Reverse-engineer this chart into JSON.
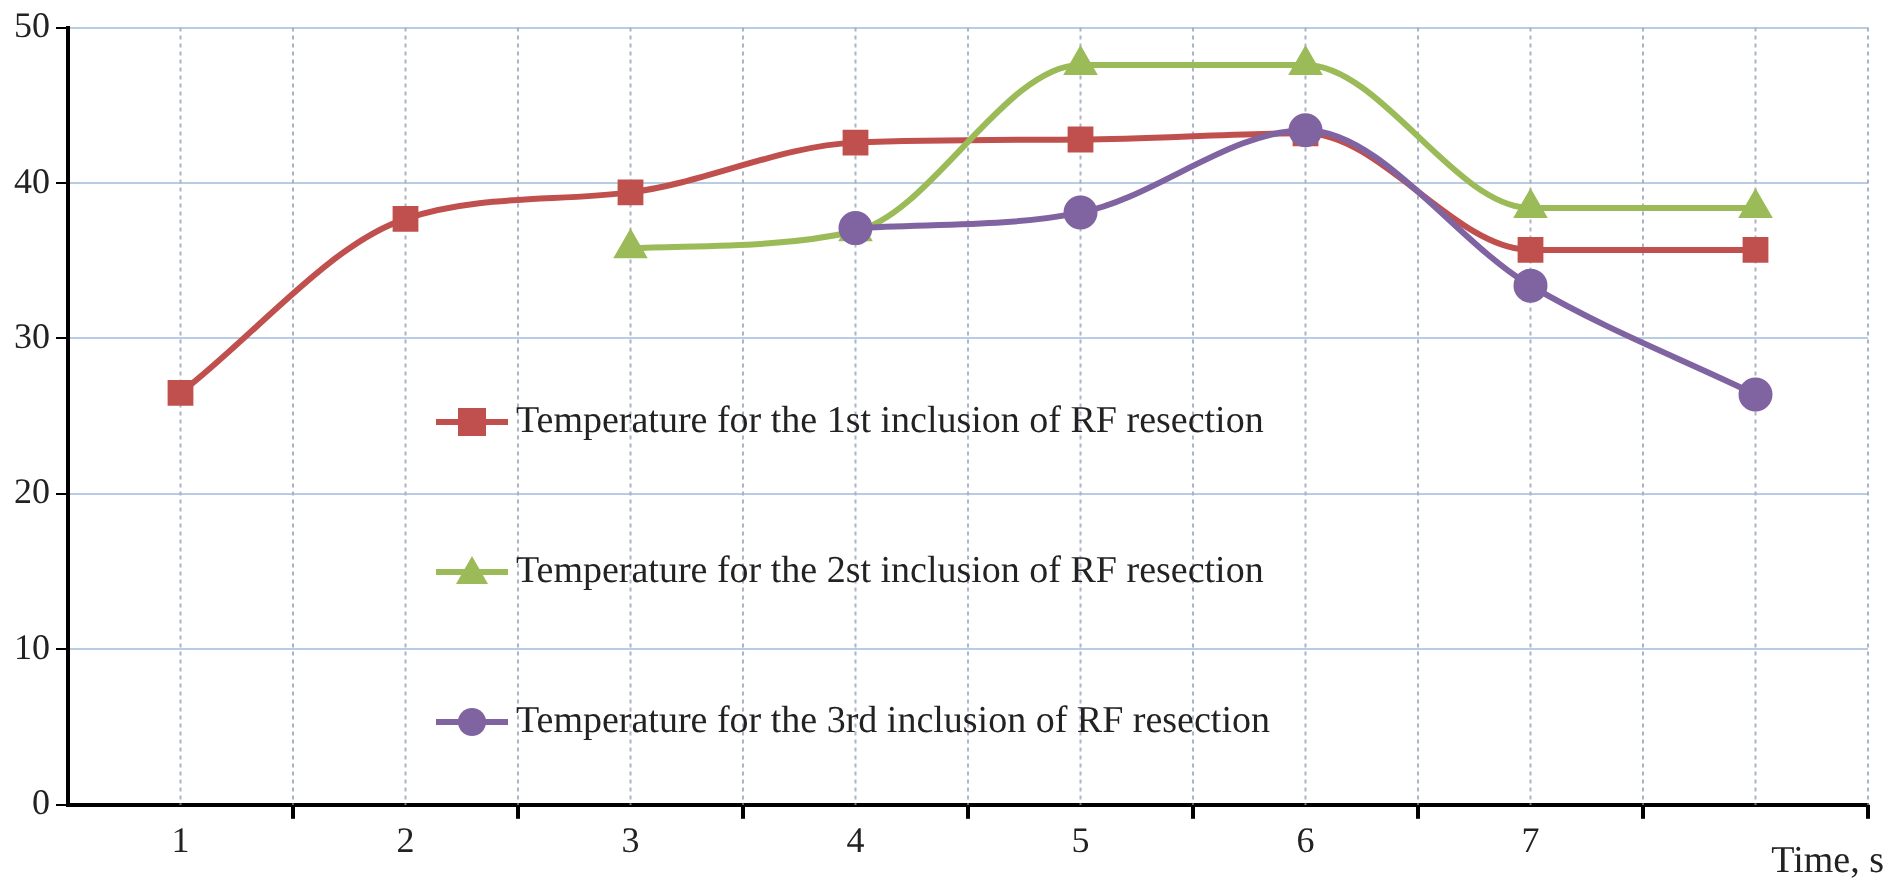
{
  "chart_data": {
    "type": "line",
    "xlabel": "Time, s",
    "categories": [
      "1",
      "2",
      "3",
      "4",
      "5",
      "6",
      "7",
      null
    ],
    "series": [
      {
        "name": "Temperature for the 1st inclusion of RF resection",
        "color": "#c0504d",
        "marker": "square",
        "values": [
          26.5,
          37.7,
          39.4,
          42.6,
          42.8,
          43.2,
          35.7,
          35.7
        ]
      },
      {
        "name": "Temperature for the 2st inclusion of RF resection",
        "color": "#9bbb59",
        "marker": "triangle",
        "values": [
          null,
          null,
          35.8,
          36.9,
          47.6,
          47.6,
          38.4,
          38.4
        ]
      },
      {
        "name": "Temperature for the 3rd inclusion of RF resection",
        "color": "#8064a2",
        "marker": "circle",
        "values": [
          null,
          null,
          null,
          37.1,
          38.1,
          43.4,
          33.4,
          26.4
        ]
      }
    ],
    "ylim": [
      0,
      50
    ],
    "yticks": [
      0,
      10,
      20,
      30,
      40,
      50
    ],
    "grid": true,
    "legend": "left"
  }
}
